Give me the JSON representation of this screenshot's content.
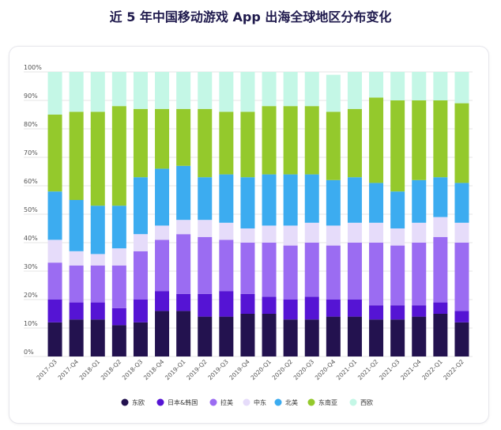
{
  "chart_data": {
    "type": "bar",
    "stacked": true,
    "title": "近 5 年中国移动游戏 App 出海全球地区分布变化",
    "xlabel": "",
    "ylabel": "",
    "ylim": [
      0,
      100
    ],
    "yticks": [
      "0%",
      "10%",
      "20%",
      "30%",
      "40%",
      "50%",
      "60%",
      "70%",
      "80%",
      "90%",
      "100%"
    ],
    "grid": true,
    "legend_position": "bottom",
    "categories": [
      "2017-Q3",
      "2017-Q4",
      "2018-Q1",
      "2018-Q2",
      "2018-Q3",
      "2018-Q4",
      "2019-Q1",
      "2019-Q2",
      "2019-Q3",
      "2019-Q4",
      "2020-Q1",
      "2020-Q2",
      "2020-Q3",
      "2020-Q4",
      "2021-Q1",
      "2021-Q2",
      "2021-Q3",
      "2021-Q4",
      "2022-Q1",
      "2022-Q2"
    ],
    "series": [
      {
        "name": "东欧",
        "color": "#23124f",
        "values": [
          12,
          13,
          13,
          11,
          12,
          16,
          16,
          14,
          14,
          15,
          15,
          13,
          13,
          14,
          14,
          13,
          13,
          14,
          15,
          12
        ]
      },
      {
        "name": "日本&韩国",
        "color": "#5514d4",
        "values": [
          8,
          6,
          6,
          6,
          8,
          7,
          6,
          8,
          9,
          7,
          6,
          7,
          8,
          6,
          6,
          5,
          5,
          4,
          4,
          4
        ]
      },
      {
        "name": "拉美",
        "color": "#9b6cf2",
        "values": [
          13,
          13,
          13,
          15,
          17,
          18,
          21,
          20,
          18,
          18,
          19,
          19,
          19,
          19,
          20,
          22,
          21,
          22,
          23,
          24
        ]
      },
      {
        "name": "中东",
        "color": "#e6dcfa",
        "values": [
          8,
          5,
          4,
          6,
          6,
          5,
          5,
          6,
          6,
          5,
          6,
          7,
          7,
          7,
          7,
          7,
          6,
          7,
          7,
          7
        ]
      },
      {
        "name": "北美",
        "color": "#3cacf0",
        "values": [
          17,
          18,
          17,
          15,
          20,
          20,
          19,
          15,
          17,
          18,
          18,
          18,
          17,
          16,
          16,
          14,
          13,
          15,
          14,
          14
        ]
      },
      {
        "name": "东南亚",
        "color": "#94c92c",
        "values": [
          27,
          31,
          33,
          35,
          24,
          21,
          20,
          24,
          22,
          23,
          24,
          24,
          24,
          24,
          24,
          30,
          32,
          28,
          27,
          28
        ]
      },
      {
        "name": "西欧",
        "color": "#c4f7e6",
        "values": [
          15,
          14,
          14,
          12,
          13,
          13,
          13,
          13,
          14,
          14,
          12,
          12,
          12,
          13,
          13,
          9,
          10,
          10,
          10,
          11
        ]
      }
    ]
  }
}
